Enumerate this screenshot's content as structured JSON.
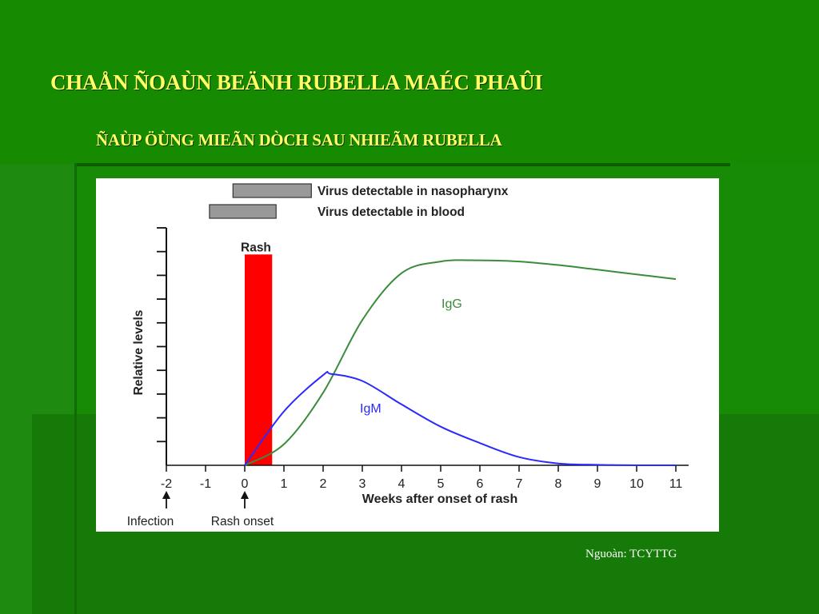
{
  "slide": {
    "title": "CHAÅN ÑOAÙN BEÄNH RUBELLA MAÉC PHAÛI",
    "subtitle": "ÑAÙP ÖÙNG MIEÃN DÒCH SAU NHIEÃM RUBELLA",
    "source": "Nguoàn: TCYTTG"
  },
  "colors": {
    "background": "#1e8a10",
    "title": "#ffff66",
    "rash": "#ff0000",
    "igg": "#3a8c3a",
    "igm": "#2a2aff",
    "bars": "#999999"
  },
  "chart_data": {
    "type": "line",
    "xlabel": "Weeks after onset of rash",
    "ylabel": "Relative levels",
    "xlim": [
      -2,
      11
    ],
    "ylim": [
      0,
      10
    ],
    "xticks": [
      -2,
      -1,
      0,
      1,
      2,
      3,
      4,
      5,
      6,
      7,
      8,
      9,
      10,
      11
    ],
    "y_tick_count": 10,
    "series": [
      {
        "name": "IgG",
        "color": "#3a8c3a",
        "x": [
          0,
          1,
          2,
          3,
          4,
          5,
          6,
          7,
          8,
          9,
          10,
          11
        ],
        "y": [
          0,
          0.9,
          3.1,
          6.2,
          8.2,
          8.7,
          8.75,
          8.7,
          8.55,
          8.35,
          8.15,
          7.95
        ]
      },
      {
        "name": "IgM",
        "color": "#2a2aff",
        "x": [
          0,
          1,
          2,
          2.2,
          3,
          4,
          5,
          6,
          7,
          8,
          9,
          10,
          11
        ],
        "y": [
          0,
          2.3,
          3.85,
          3.9,
          3.6,
          2.6,
          1.65,
          0.95,
          0.35,
          0.08,
          0.02,
          0,
          0
        ]
      }
    ],
    "rash_bar": {
      "label": "Rash",
      "x_start": 0,
      "x_end": 0.7,
      "y_top": 9.0
    },
    "detection_bars": [
      {
        "label": "Virus detectable in nasopharynx",
        "x_start": -0.3,
        "x_end": 1.7
      },
      {
        "label": "Virus detectable in blood",
        "x_start": -0.9,
        "x_end": 0.8
      }
    ],
    "markers": [
      {
        "label": "Infection",
        "x": -2
      },
      {
        "label": "Rash onset",
        "x": 0
      }
    ]
  }
}
